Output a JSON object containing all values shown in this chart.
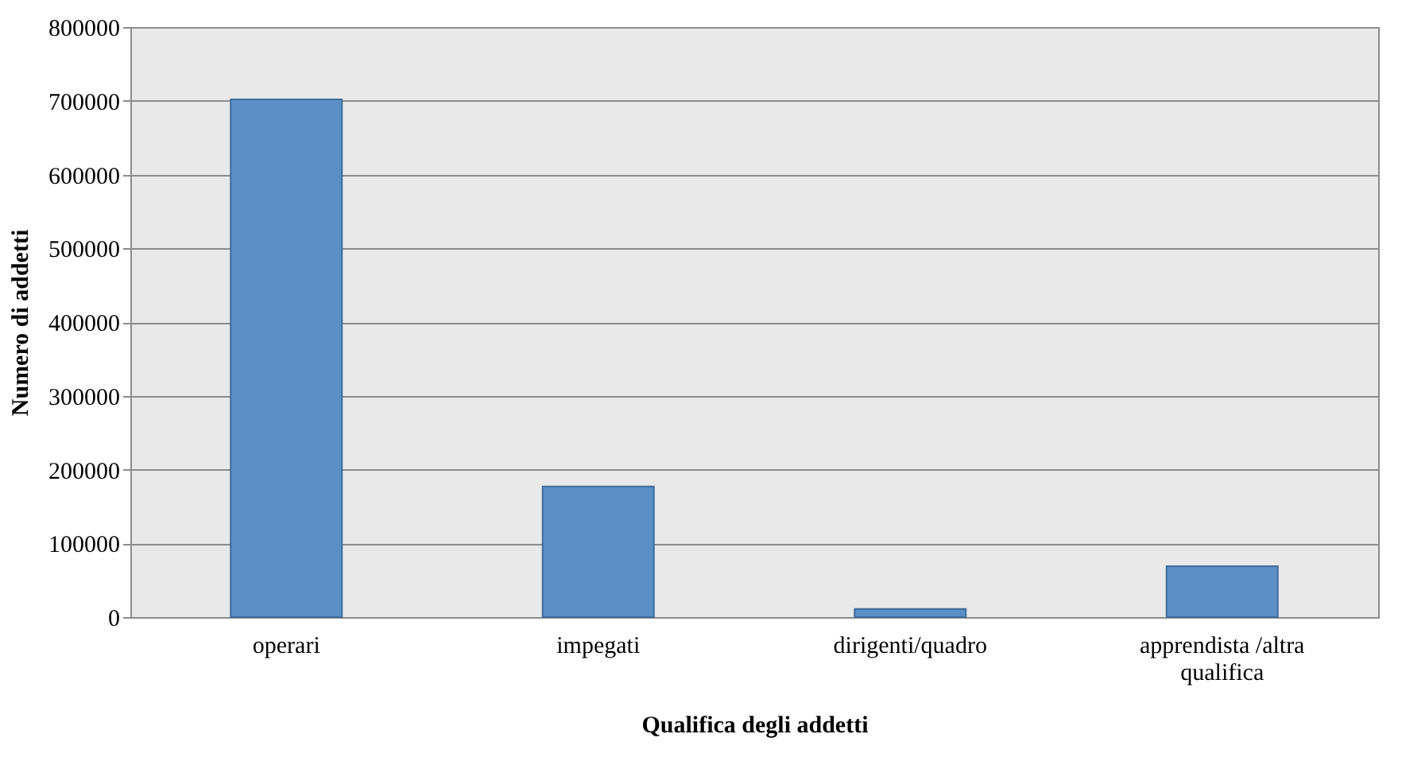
{
  "chart_data": {
    "type": "bar",
    "xlabel": "Qualifica degli addetti",
    "ylabel": "Numero di addetti",
    "categories": [
      "operari",
      "impegati",
      "dirigenti/quadro",
      "apprendista /altra qualifica"
    ],
    "values": [
      702000,
      177000,
      11000,
      69000
    ],
    "color": "#5b8fc5",
    "ylim": [
      0,
      800000
    ],
    "yticks": [
      0,
      100000,
      200000,
      300000,
      400000,
      500000,
      600000,
      700000,
      800000
    ],
    "grid": "y",
    "legend": false
  }
}
